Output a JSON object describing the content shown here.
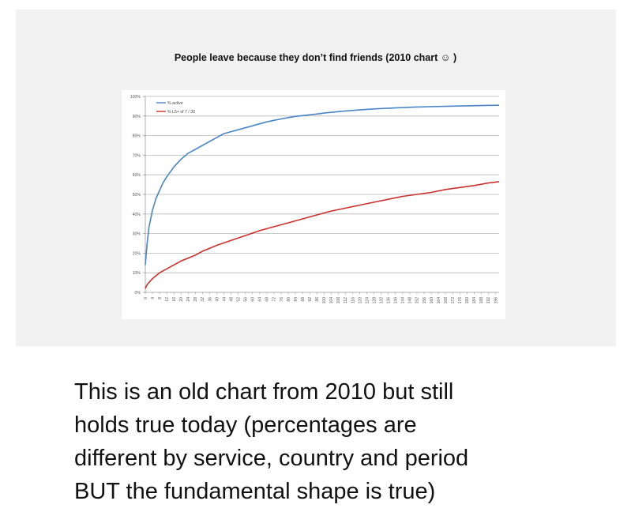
{
  "caption_lines": [
    "This is an old chart from 2010 but still",
    "holds true today (percentages are",
    "different by service, country and period",
    "BUT the fundamental shape is true)"
  ],
  "chart_data": {
    "type": "line",
    "title": "People leave because they don’t find friends (2010 chart ☺ )",
    "xlabel": "",
    "ylabel": "",
    "ylim": [
      0,
      100
    ],
    "yticks": [
      0,
      10,
      20,
      30,
      40,
      50,
      60,
      70,
      80,
      90,
      100
    ],
    "ytick_labels": [
      "0%",
      "10%",
      "20%",
      "30%",
      "40%",
      "50%",
      "60%",
      "70%",
      "80%",
      "90%",
      "100%"
    ],
    "xticks": [
      0,
      4,
      8,
      12,
      16,
      20,
      24,
      28,
      32,
      36,
      40,
      44,
      48,
      52,
      56,
      60,
      64,
      68,
      72,
      76,
      80,
      84,
      88,
      92,
      96,
      100,
      104,
      108,
      112,
      116,
      120,
      124,
      128,
      132,
      136,
      140,
      144,
      148,
      152,
      156,
      160,
      164,
      168,
      172,
      176,
      180,
      184,
      188,
      192,
      196
    ],
    "xlim": [
      0,
      198
    ],
    "grid": true,
    "legend_position": "top-left",
    "series": [
      {
        "name": "% active",
        "color": "#4a86c5",
        "x": [
          0,
          1,
          2,
          4,
          6,
          8,
          10,
          12,
          16,
          20,
          24,
          28,
          32,
          36,
          40,
          44,
          48,
          52,
          56,
          60,
          64,
          68,
          72,
          76,
          80,
          84,
          88,
          92,
          96,
          100,
          110,
          120,
          130,
          140,
          150,
          160,
          170,
          180,
          190,
          198
        ],
        "values": [
          14,
          25,
          33,
          42,
          48,
          52,
          56,
          59,
          64,
          68,
          71,
          73,
          75,
          77,
          79,
          81,
          82,
          83,
          84,
          85,
          86,
          87,
          87.8,
          88.5,
          89.2,
          89.8,
          90.2,
          90.6,
          91,
          91.5,
          92.4,
          93.1,
          93.7,
          94.1,
          94.5,
          94.8,
          95,
          95.2,
          95.4,
          95.5
        ]
      },
      {
        "name": "% L5+ of 7 / 30",
        "color": "#c9302c",
        "x": [
          0,
          1,
          2,
          4,
          6,
          8,
          10,
          12,
          16,
          20,
          24,
          28,
          32,
          36,
          40,
          48,
          56,
          64,
          72,
          80,
          88,
          96,
          104,
          112,
          120,
          128,
          136,
          144,
          152,
          160,
          168,
          176,
          184,
          192,
          198
        ],
        "values": [
          2,
          4,
          5,
          7,
          8.5,
          10,
          11,
          12,
          14,
          16,
          17.5,
          19,
          21,
          22.5,
          24,
          26.5,
          29,
          31.5,
          33.5,
          35.5,
          37.5,
          39.5,
          41.5,
          43,
          44.5,
          46,
          47.5,
          49,
          50,
          51,
          52.5,
          53.5,
          54.5,
          55.8,
          56.5
        ]
      }
    ]
  }
}
